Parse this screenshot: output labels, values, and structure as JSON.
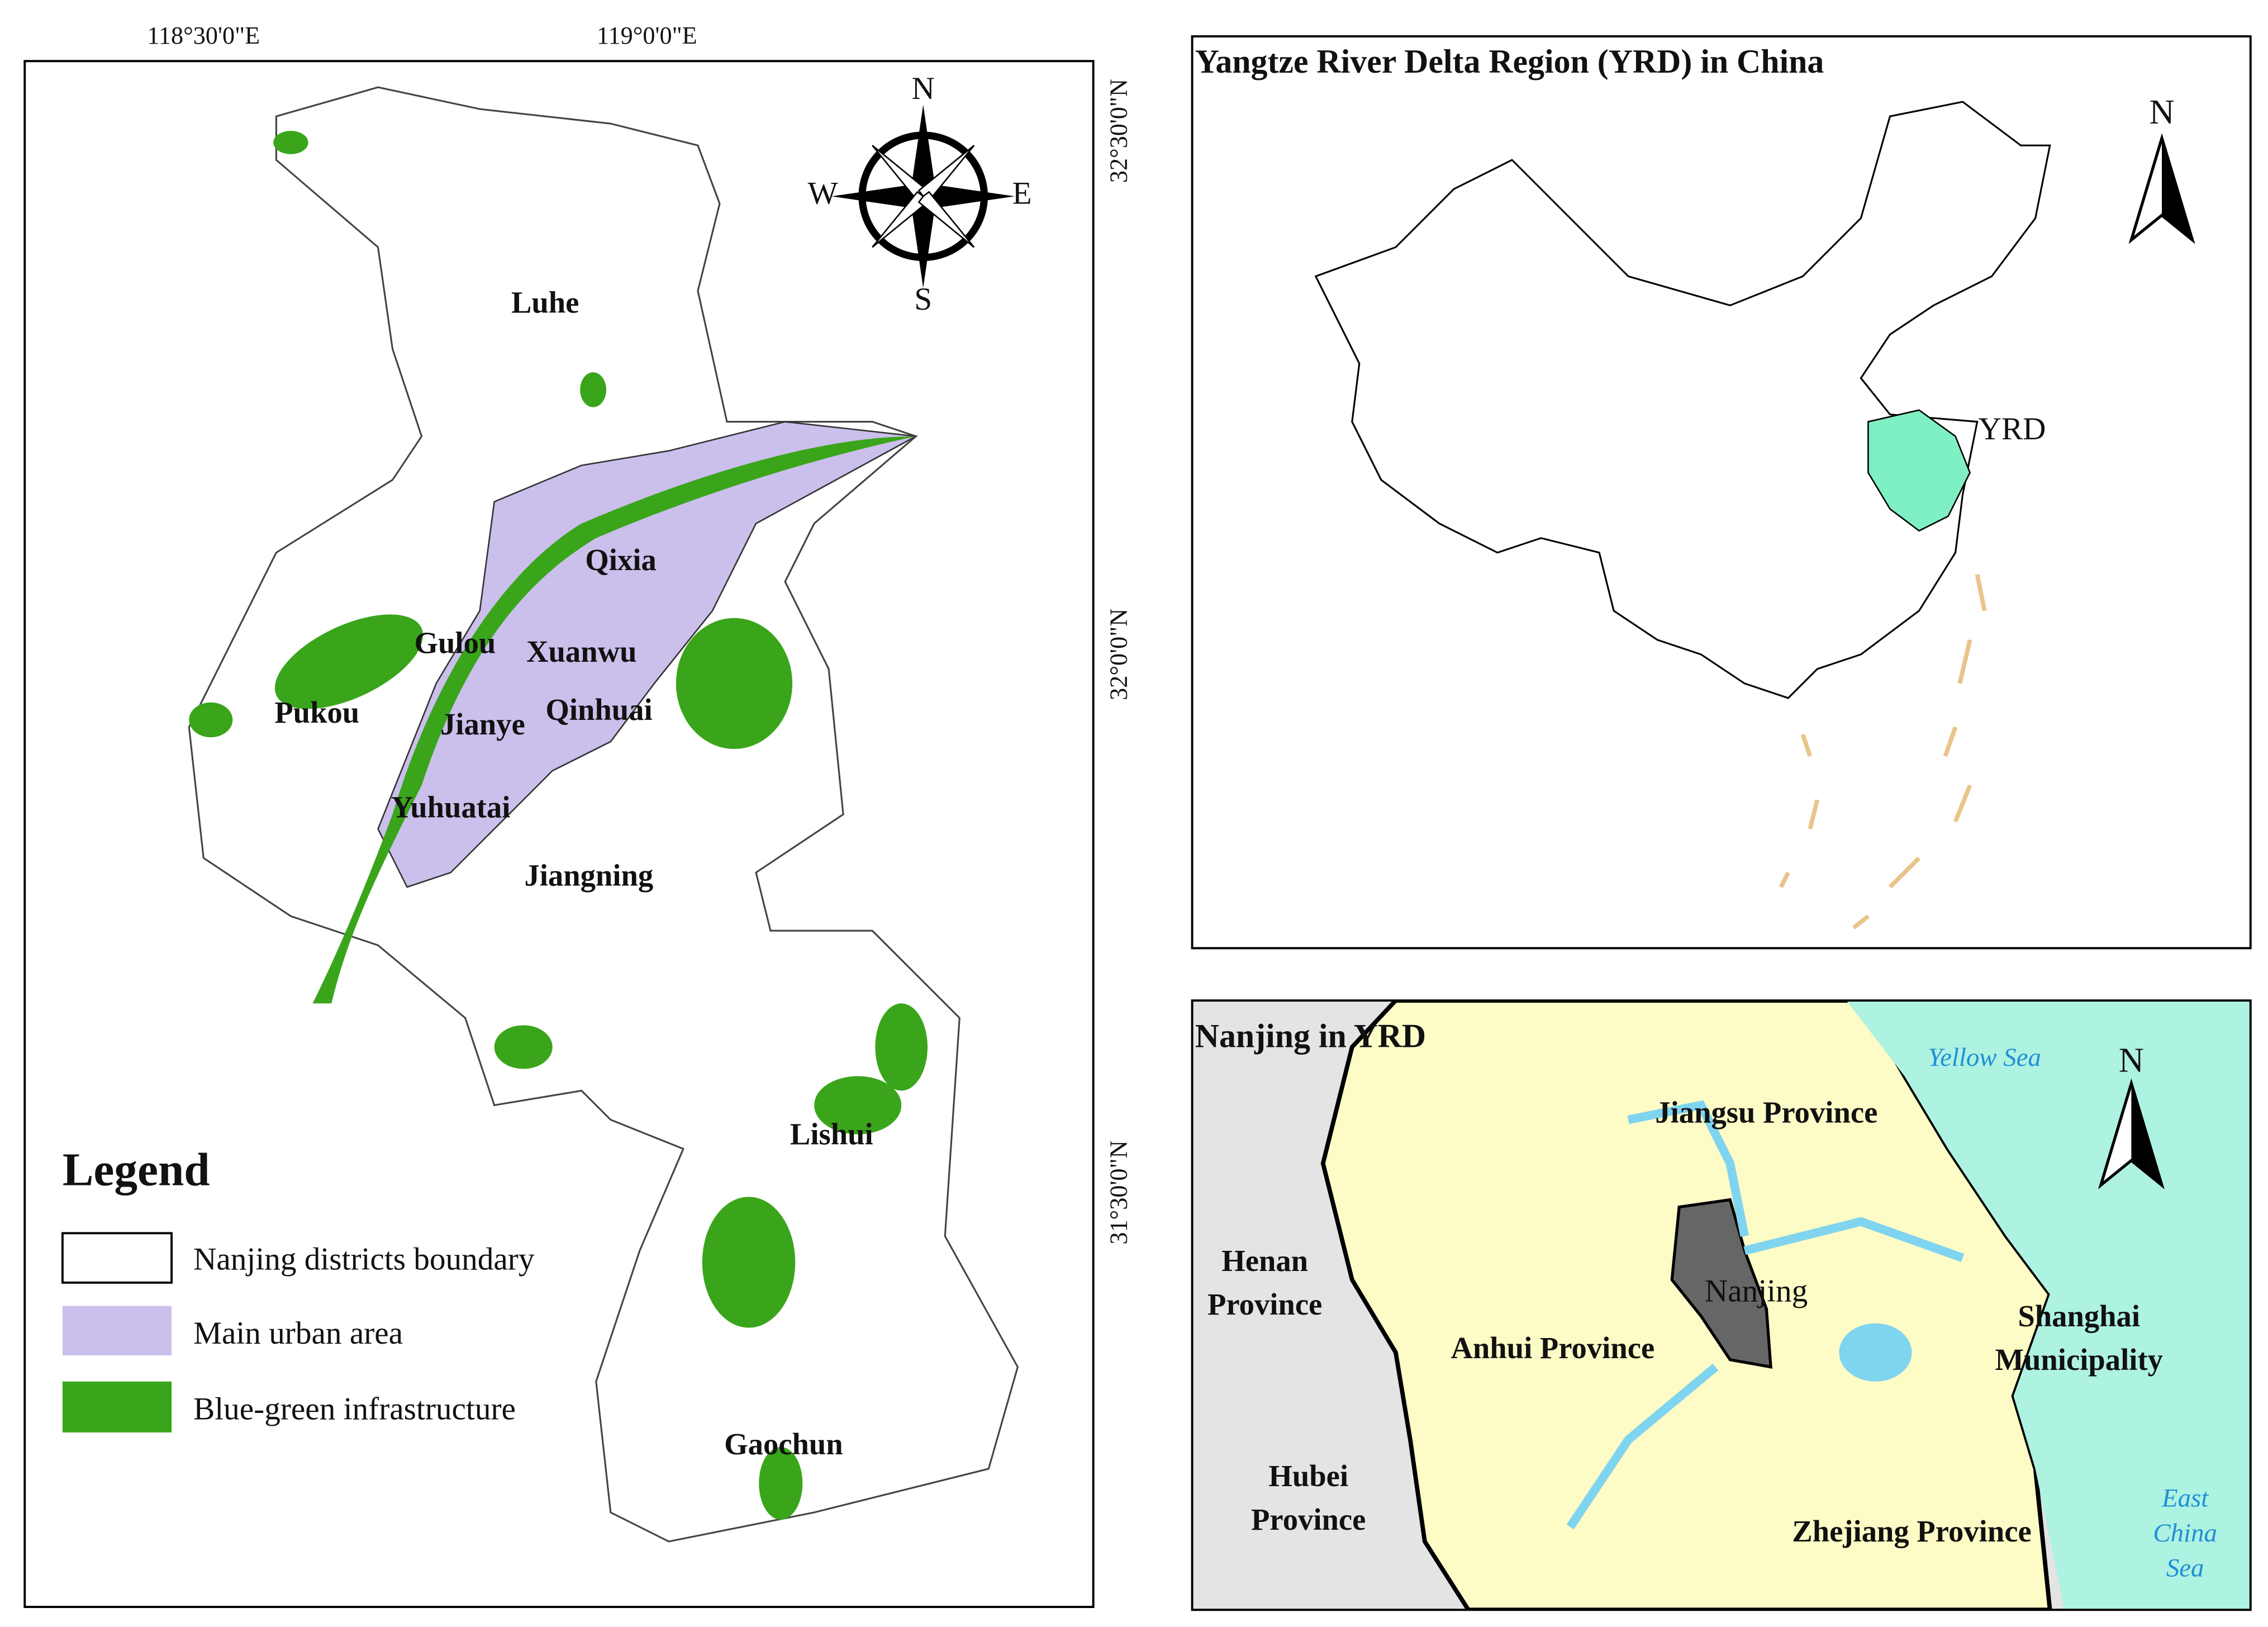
{
  "main_map": {
    "lon_labels": [
      "118°30'0\"E",
      "119°0'0\"E"
    ],
    "lat_labels": [
      "32°30'0\"N",
      "32°0'0\"N",
      "31°30'0\"N"
    ],
    "compass": {
      "n": "N",
      "e": "E",
      "s": "S",
      "w": "W"
    },
    "districts": [
      "Luhe",
      "Qixia",
      "Gulou",
      "Xuanwu",
      "Pukou",
      "Qinhuai",
      "Jianye",
      "Yuhuatai",
      "Jiangning",
      "Lishui",
      "Gaochun"
    ],
    "legend": {
      "title": "Legend",
      "items": [
        "Nanjing districts boundary",
        "Main urban area",
        "Blue-green infrastructure"
      ]
    }
  },
  "china_map": {
    "title": "Yangtze River Delta Region (YRD) in China",
    "region_label": "YRD",
    "north": "N"
  },
  "yrd_map": {
    "title": "Nanjing in YRD",
    "north": "N",
    "labels": {
      "jiangsu": "Jiangsu Province",
      "henan": [
        "Henan",
        "Province"
      ],
      "anhui": "Anhui Province",
      "nanjing": "Nanjing",
      "shanghai": [
        "Shanghai",
        "Municipality"
      ],
      "hubei": [
        "Hubei",
        "Province"
      ],
      "zhejiang": "Zhejiang Province",
      "yellow_sea": "Yellow Sea",
      "east_china_sea": [
        "East",
        "China",
        "Sea"
      ]
    }
  }
}
